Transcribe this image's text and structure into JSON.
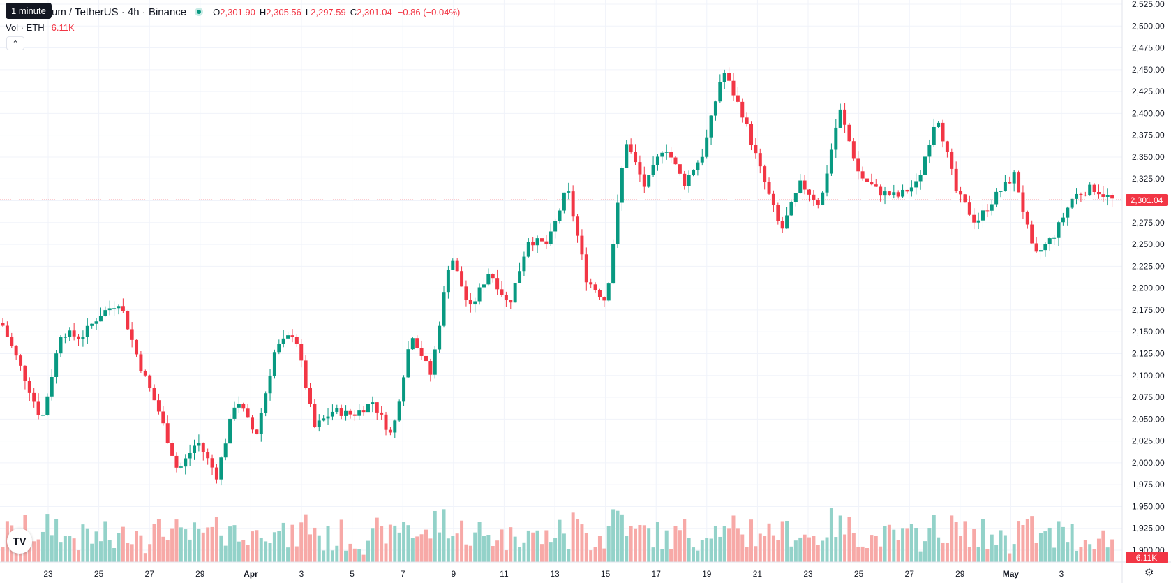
{
  "legend": {
    "symbol": "um / TetherUS · 4h · Binance",
    "open_label": "O",
    "open": "2,301.90",
    "high_label": "H",
    "high": "2,305.56",
    "low_label": "L",
    "low": "2,297.59",
    "close_label": "C",
    "close": "2,301.04",
    "change": "−0.86 (−0.04%)"
  },
  "tooltip": "1 minute",
  "volume_legend": {
    "label": "Vol · ETH",
    "value": "6.11K"
  },
  "last_price_label": "2,301.04",
  "last_volume_label": "6.11K",
  "colors": {
    "up": "#089981",
    "down": "#f23645",
    "up_volume": "#93d2c9",
    "down_volume": "#f7a9a7"
  },
  "icons": {
    "collapse": "chevron-up-icon",
    "logo": "tradingview-logo",
    "settings": "gear-icon"
  },
  "chart_data": {
    "type": "candlestick",
    "timeframe": "4h",
    "x_axis_labels": [
      "23",
      "25",
      "27",
      "29",
      "Apr",
      "3",
      "5",
      "7",
      "9",
      "11",
      "13",
      "15",
      "17",
      "19",
      "21",
      "23",
      "25",
      "27",
      "29",
      "May",
      "3"
    ],
    "y_axis_labels": [
      "2,525.00",
      "2,500.00",
      "2,475.00",
      "2,450.00",
      "2,425.00",
      "2,400.00",
      "2,375.00",
      "2,350.00",
      "2,325.00",
      "2,300.00",
      "2,275.00",
      "2,250.00",
      "2,225.00",
      "2,200.00",
      "2,175.00",
      "2,150.00",
      "2,125.00",
      "2,100.00",
      "2,075.00",
      "2,050.00",
      "2,025.00",
      "2,000.00",
      "1,975.00",
      "1,950.00",
      "1,925.00",
      "1,900.00"
    ],
    "ylim": [
      1900,
      2525
    ],
    "last_close": 2301.04,
    "key_points": [
      {
        "x": "Mar 21",
        "y": 2157
      },
      {
        "x": "Mar 22",
        "y": 2105
      },
      {
        "x": "Mar 23",
        "y": 2048
      },
      {
        "x": "Mar 23",
        "y": 2150
      },
      {
        "x": "Mar 24",
        "y": 2143
      },
      {
        "x": "Mar 25",
        "y": 2170
      },
      {
        "x": "Mar 26",
        "y": 2185
      },
      {
        "x": "Mar 26",
        "y": 2115
      },
      {
        "x": "Mar 27",
        "y": 2060
      },
      {
        "x": "Mar 27",
        "y": 1990
      },
      {
        "x": "Mar 28",
        "y": 2025
      },
      {
        "x": "Mar 29",
        "y": 1985
      },
      {
        "x": "Mar 30",
        "y": 2075
      },
      {
        "x": "Mar 31",
        "y": 2030
      },
      {
        "x": "Apr 1",
        "y": 2130
      },
      {
        "x": "Apr 1",
        "y": 2150
      },
      {
        "x": "Apr 2",
        "y": 2040
      },
      {
        "x": "Apr 3",
        "y": 2060
      },
      {
        "x": "Apr 4",
        "y": 2055
      },
      {
        "x": "Apr 5",
        "y": 2070
      },
      {
        "x": "Apr 6",
        "y": 2030
      },
      {
        "x": "Apr 7",
        "y": 2150
      },
      {
        "x": "Apr 8",
        "y": 2100
      },
      {
        "x": "Apr 8",
        "y": 2240
      },
      {
        "x": "Apr 9",
        "y": 2175
      },
      {
        "x": "Apr 10",
        "y": 2220
      },
      {
        "x": "Apr 10",
        "y": 2180
      },
      {
        "x": "Apr 11",
        "y": 2255
      },
      {
        "x": "Apr 12",
        "y": 2250
      },
      {
        "x": "Apr 12",
        "y": 2315
      },
      {
        "x": "Apr 12",
        "y": 2210
      },
      {
        "x": "Apr 13",
        "y": 2185
      },
      {
        "x": "Apr 14",
        "y": 2370
      },
      {
        "x": "Apr 14",
        "y": 2315
      },
      {
        "x": "Apr 16",
        "y": 2365
      },
      {
        "x": "Apr 16",
        "y": 2320
      },
      {
        "x": "Apr 17",
        "y": 2355
      },
      {
        "x": "Apr 17",
        "y": 2450
      },
      {
        "x": "Apr 18",
        "y": 2400
      },
      {
        "x": "Apr 19",
        "y": 2330
      },
      {
        "x": "Apr 19",
        "y": 2265
      },
      {
        "x": "Apr 20",
        "y": 2320
      },
      {
        "x": "Apr 21",
        "y": 2295
      },
      {
        "x": "Apr 22",
        "y": 2405
      },
      {
        "x": "Apr 23",
        "y": 2330
      },
      {
        "x": "Apr 24",
        "y": 2310
      },
      {
        "x": "Apr 25",
        "y": 2305
      },
      {
        "x": "Apr 26",
        "y": 2320
      },
      {
        "x": "Apr 27",
        "y": 2400
      },
      {
        "x": "Apr 27",
        "y": 2310
      },
      {
        "x": "Apr 28",
        "y": 2275
      },
      {
        "x": "Apr 29",
        "y": 2305
      },
      {
        "x": "Apr 29",
        "y": 2330
      },
      {
        "x": "Apr 30",
        "y": 2235
      },
      {
        "x": "May 1",
        "y": 2260
      },
      {
        "x": "May 2",
        "y": 2305
      },
      {
        "x": "May 3",
        "y": 2315
      },
      {
        "x": "May 3",
        "y": 2301.04
      }
    ],
    "volume_peaks": [
      {
        "x": "Mar 23",
        "value": "high"
      },
      {
        "x": "Apr 8",
        "value": "high"
      },
      {
        "x": "Apr 14",
        "value": "high"
      },
      {
        "x": "Apr 17",
        "value": "high"
      }
    ],
    "grid": true
  }
}
